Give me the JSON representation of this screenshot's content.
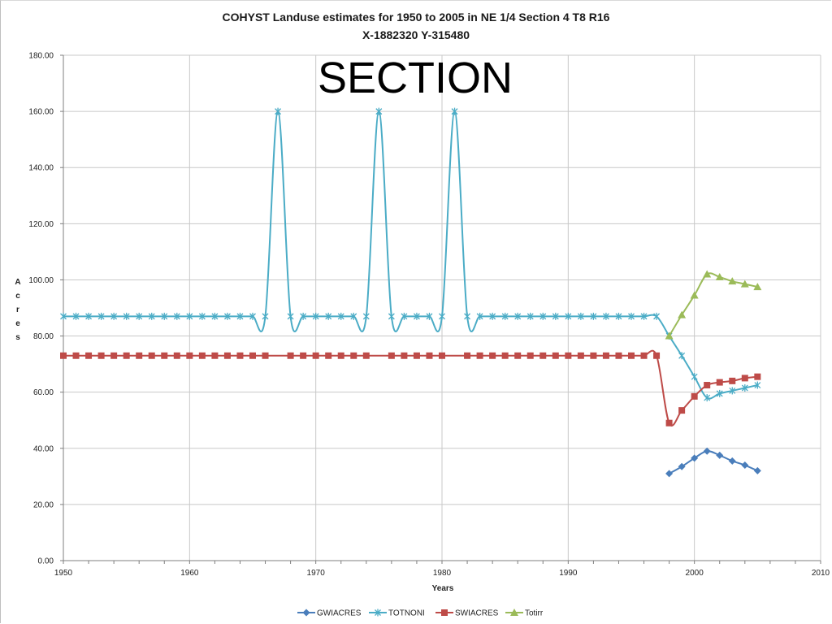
{
  "chart_data": {
    "type": "line",
    "title_line1": "COHYST Landuse estimates for 1950 to 2005 in NE 1/4 Section 4 T8 R16",
    "title_line2": "X-1882320 Y-315480",
    "overlay_text": "SECTION",
    "xlabel": "Years",
    "ylabel": "A c r e s",
    "xlim": [
      1950,
      2010
    ],
    "ylim": [
      0,
      180
    ],
    "x_ticks": [
      1950,
      1960,
      1970,
      1980,
      1990,
      2000,
      2010
    ],
    "y_ticks": [
      "0.00",
      "20.00",
      "40.00",
      "60.00",
      "80.00",
      "100.00",
      "120.00",
      "140.00",
      "160.00",
      "180.00"
    ],
    "y_tick_values": [
      0,
      20,
      40,
      60,
      80,
      100,
      120,
      140,
      160,
      180
    ],
    "grid": true,
    "legend_position": "bottom",
    "series": [
      {
        "name": "GWIACRES",
        "color": "#4a7ebb",
        "marker": "diamond",
        "x": [
          1998,
          1999,
          2000,
          2001,
          2002,
          2003,
          2004,
          2005
        ],
        "values": [
          31,
          33.5,
          36.5,
          39,
          37.5,
          35.5,
          34,
          32
        ]
      },
      {
        "name": "TOTNONI",
        "color": "#4bacc6",
        "marker": "star",
        "x": [
          1950,
          1951,
          1952,
          1953,
          1954,
          1955,
          1956,
          1957,
          1958,
          1959,
          1960,
          1961,
          1962,
          1963,
          1964,
          1965,
          1966,
          1967,
          1968,
          1969,
          1970,
          1971,
          1972,
          1973,
          1974,
          1975,
          1976,
          1977,
          1978,
          1979,
          1980,
          1981,
          1982,
          1983,
          1984,
          1985,
          1986,
          1987,
          1988,
          1989,
          1990,
          1991,
          1992,
          1993,
          1994,
          1995,
          1996,
          1997,
          1998,
          1999,
          2000,
          2001,
          2002,
          2003,
          2004,
          2005
        ],
        "values": [
          87,
          87,
          87,
          87,
          87,
          87,
          87,
          87,
          87,
          87,
          87,
          87,
          87,
          87,
          87,
          87,
          87,
          160,
          87,
          87,
          87,
          87,
          87,
          87,
          87,
          160,
          87,
          87,
          87,
          87,
          87,
          160,
          87,
          87,
          87,
          87,
          87,
          87,
          87,
          87,
          87,
          87,
          87,
          87,
          87,
          87,
          87,
          87,
          80,
          73,
          65.5,
          58,
          59.5,
          60.5,
          61.5,
          62.5
        ]
      },
      {
        "name": "SWIACRES",
        "color": "#be4b48",
        "marker": "square",
        "x": [
          1950,
          1951,
          1952,
          1953,
          1954,
          1955,
          1956,
          1957,
          1958,
          1959,
          1960,
          1961,
          1962,
          1963,
          1964,
          1965,
          1966,
          1968,
          1969,
          1970,
          1971,
          1972,
          1973,
          1974,
          1976,
          1977,
          1978,
          1979,
          1980,
          1982,
          1983,
          1984,
          1985,
          1986,
          1987,
          1988,
          1989,
          1990,
          1991,
          1992,
          1993,
          1994,
          1995,
          1996,
          1997,
          1998,
          1999,
          2000,
          2001,
          2002,
          2003,
          2004,
          2005
        ],
        "values": [
          73,
          73,
          73,
          73,
          73,
          73,
          73,
          73,
          73,
          73,
          73,
          73,
          73,
          73,
          73,
          73,
          73,
          73,
          73,
          73,
          73,
          73,
          73,
          73,
          73,
          73,
          73,
          73,
          73,
          73,
          73,
          73,
          73,
          73,
          73,
          73,
          73,
          73,
          73,
          73,
          73,
          73,
          73,
          73,
          73,
          49,
          53.5,
          58.5,
          62.5,
          63.5,
          64,
          65,
          65.5
        ]
      },
      {
        "name": "Totirr",
        "color": "#9bbb59",
        "marker": "triangle",
        "x": [
          1998,
          1999,
          2000,
          2001,
          2002,
          2003,
          2004,
          2005
        ],
        "values": [
          80,
          87.5,
          94.5,
          102,
          101,
          99.5,
          98.5,
          97.5
        ]
      }
    ]
  }
}
